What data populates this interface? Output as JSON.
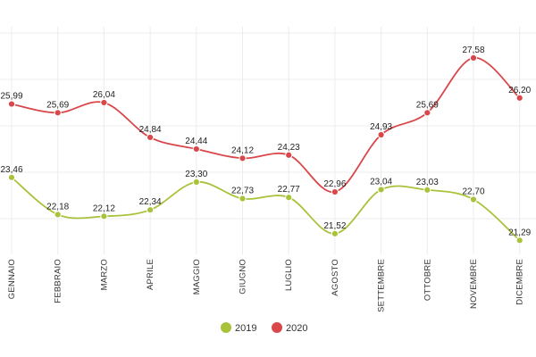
{
  "chart_data": {
    "type": "line",
    "categories": [
      "GENNAIO",
      "FEBBRAIO",
      "MARZO",
      "APRILE",
      "MAGGIO",
      "GIUGNO",
      "LUGLIO",
      "AGOSTO",
      "SETTEMBRE",
      "OTTOBRE",
      "NOVEMBRE",
      "DICEMBRE"
    ],
    "series": [
      {
        "name": "2019",
        "color": "#a8c23a",
        "values": [
          23.46,
          22.18,
          22.12,
          22.34,
          23.3,
          22.73,
          22.77,
          21.52,
          23.04,
          23.03,
          22.7,
          21.29
        ],
        "labels": [
          "23,46",
          "22,18",
          "22,12",
          "22,34",
          "23,30",
          "22,73",
          "22,77",
          "21,52",
          "23,04",
          "23,03",
          "22,70",
          "21,29"
        ]
      },
      {
        "name": "2020",
        "color": "#d9474a",
        "values": [
          25.99,
          25.69,
          26.04,
          24.84,
          24.44,
          24.12,
          24.23,
          22.96,
          24.93,
          25.69,
          27.58,
          26.2
        ],
        "labels": [
          "25,99",
          "25,69",
          "26,04",
          "24,84",
          "24,44",
          "24,12",
          "24,23",
          "22,96",
          "24,93",
          "25,69",
          "27,58",
          "26,20"
        ]
      }
    ],
    "ylim": [
      20.5,
      28.5
    ],
    "grid": true,
    "legend_position": "bottom-center"
  }
}
